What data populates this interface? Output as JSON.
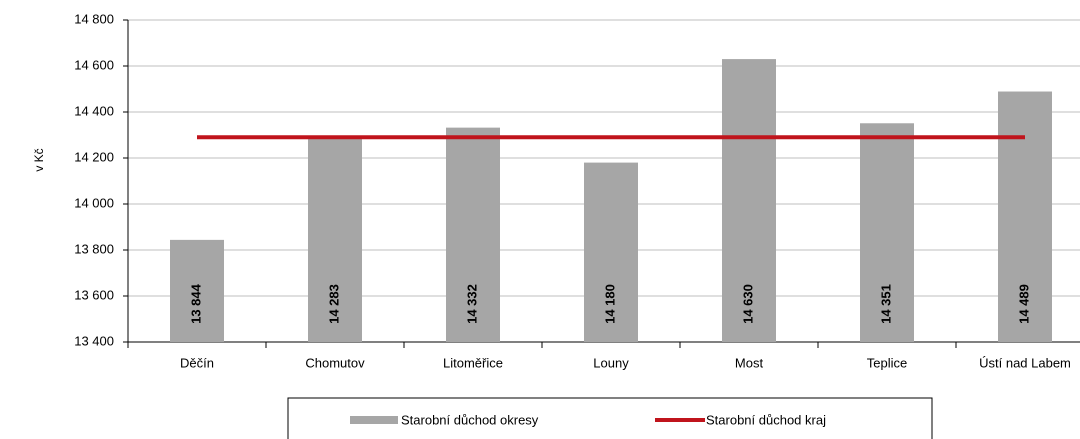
{
  "chart_data": {
    "type": "bar",
    "y_label": "v Kč",
    "categories": [
      "Děčín",
      "Chomutov",
      "Litoměřice",
      "Louny",
      "Most",
      "Teplice",
      "Ústí nad Labem"
    ],
    "series": [
      {
        "name": "Starobní důchod okresy",
        "type": "bar",
        "color": "#a6a6a6",
        "values": [
          13844,
          14283,
          14332,
          14180,
          14630,
          14351,
          14489
        ],
        "value_labels": [
          "13 844",
          "14 283",
          "14 332",
          "14 180",
          "14 630",
          "14 351",
          "14 489"
        ]
      },
      {
        "name": "Starobní důchod kraj",
        "type": "line",
        "color": "#c0141c",
        "values": [
          14290,
          14290,
          14290,
          14290,
          14290,
          14290,
          14290
        ]
      }
    ],
    "ylim": [
      13400,
      14800
    ],
    "yticks": [
      {
        "value": 13400,
        "label": "13 400"
      },
      {
        "value": 13600,
        "label": "13 600"
      },
      {
        "value": 13800,
        "label": "13 800"
      },
      {
        "value": 14000,
        "label": "14 000"
      },
      {
        "value": 14200,
        "label": "14 200"
      },
      {
        "value": 14400,
        "label": "14 400"
      },
      {
        "value": 14600,
        "label": "14 600"
      },
      {
        "value": 14800,
        "label": "14 800"
      }
    ],
    "grid": true,
    "legend": "bottom"
  }
}
